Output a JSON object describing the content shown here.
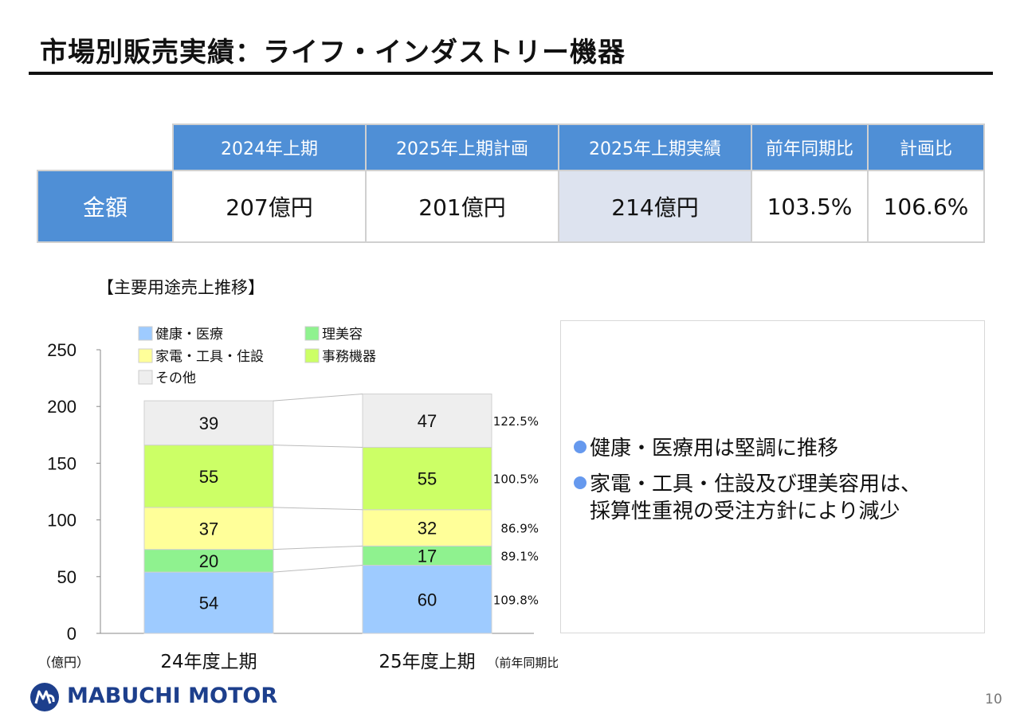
{
  "title": "市場別販売実績：ライフ・インダストリー機器",
  "summary_table": {
    "headers": [
      "2024年上期",
      "2025年上期計画",
      "2025年上期実績",
      "前年同期比",
      "計画比"
    ],
    "row_label": "金額",
    "values": [
      "207億円",
      "201億円",
      "214億円",
      "103.5%",
      "106.6%"
    ]
  },
  "chart_title": "【主要用途売上推移】",
  "chart_data": {
    "type": "bar",
    "stacked": true,
    "categories": [
      "24年度上期",
      "25年度上期"
    ],
    "unit_label": "（億円）",
    "ylim": [
      0,
      250
    ],
    "yticks": [
      0,
      50,
      100,
      150,
      200,
      250
    ],
    "series": [
      {
        "name": "健康・医療",
        "values": [
          54,
          60
        ],
        "color": "#9ecbff",
        "yoy": "109.8%"
      },
      {
        "name": "理美容",
        "values": [
          20,
          17
        ],
        "color": "#8ff28f",
        "yoy": "89.1%"
      },
      {
        "name": "家電・工具・住設",
        "values": [
          37,
          32
        ],
        "color": "#ffff99",
        "yoy": "86.9%"
      },
      {
        "name": "事務機器",
        "values": [
          55,
          55
        ],
        "color": "#ccff66",
        "yoy": "100.5%"
      },
      {
        "name": "その他",
        "values": [
          39,
          47
        ],
        "color": "#eeeeee",
        "yoy": "122.5%"
      }
    ],
    "yoy_note": "（前年同期比）",
    "legend_position": "top-left"
  },
  "bullets": [
    {
      "lines": [
        "健康・医療用は堅調に推移"
      ]
    },
    {
      "lines": [
        "家電・工具・住設及び理美容用は、",
        "採算性重視の受注方針により減少"
      ]
    }
  ],
  "logo_text": "MABUCHI MOTOR",
  "page_number": "10",
  "colors": {
    "header_blue": "#4f8fd6",
    "highlight_cell": "#dde3ef",
    "bullet": "#6699ee",
    "logo": "#1d3f8c"
  }
}
